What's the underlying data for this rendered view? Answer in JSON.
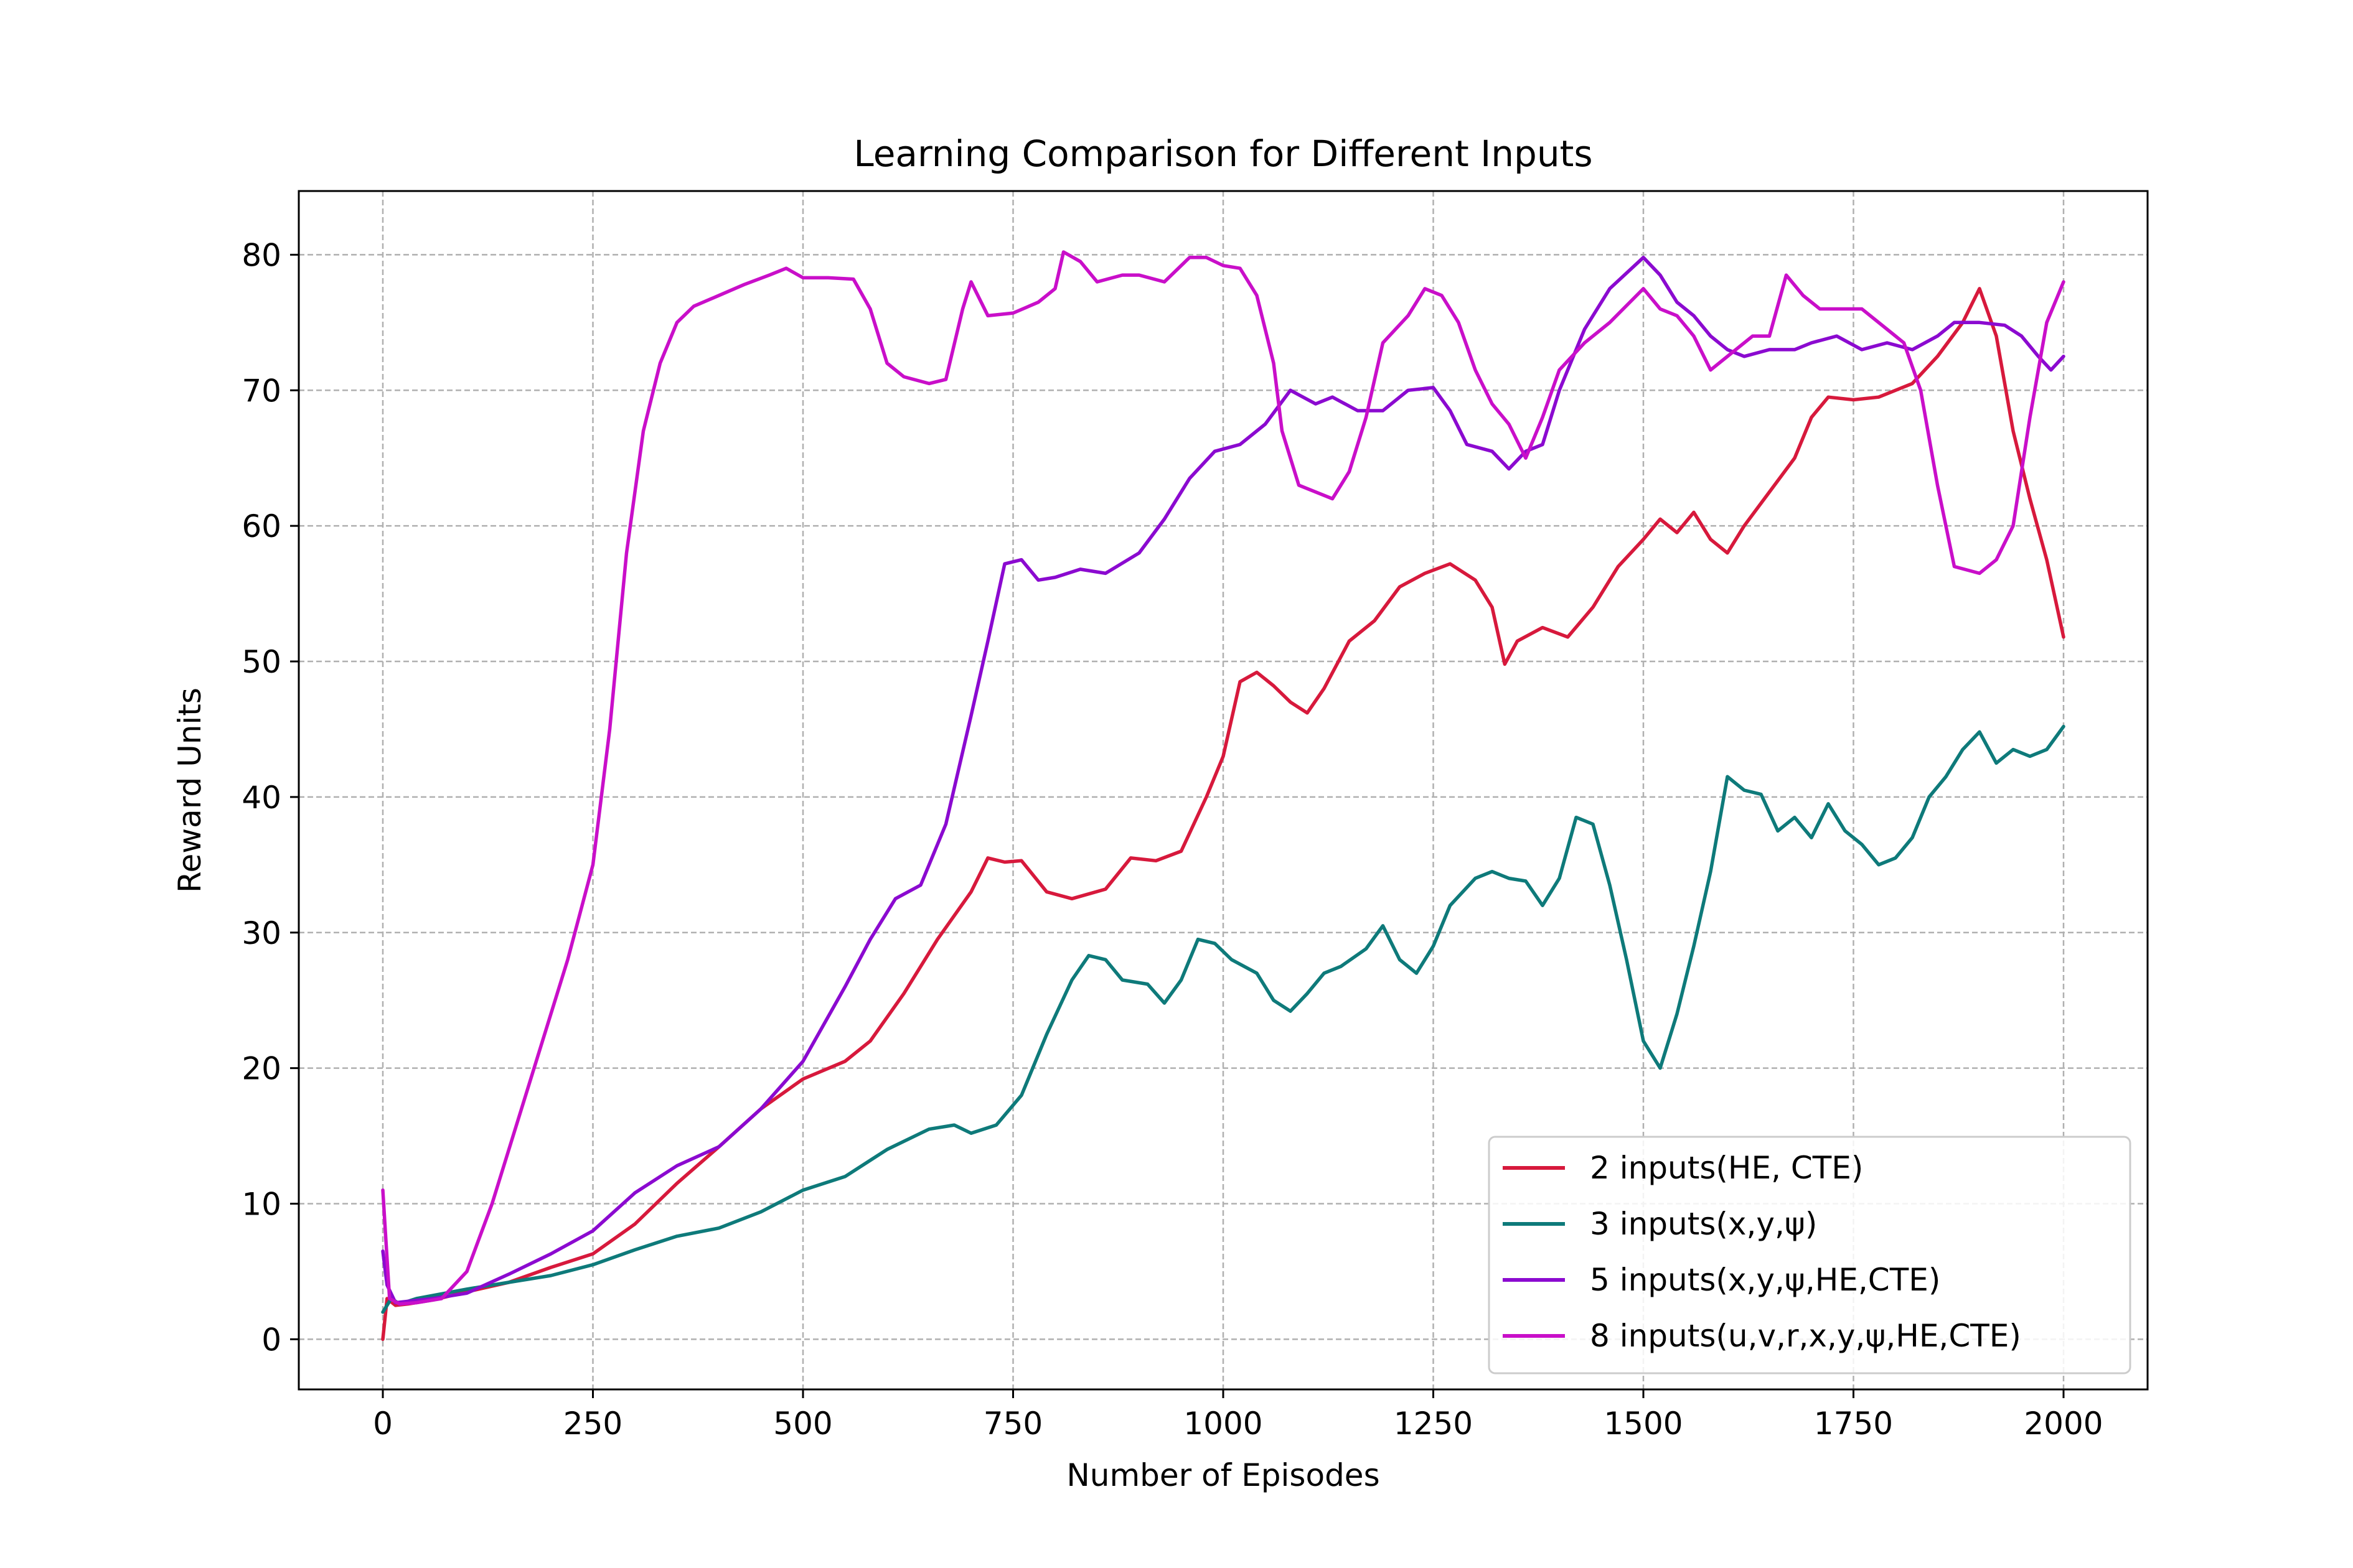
{
  "chart_data": {
    "type": "line",
    "title": "Learning Comparison for Different Inputs",
    "xlabel": "Number of Episodes",
    "ylabel": "Reward Units",
    "xlim": [
      -100,
      2100
    ],
    "ylim": [
      -3.7,
      84.7
    ],
    "xticks": [
      0,
      250,
      500,
      750,
      1000,
      1250,
      1500,
      1750,
      2000
    ],
    "yticks": [
      0,
      10,
      20,
      30,
      40,
      50,
      60,
      70,
      80
    ],
    "grid": true,
    "legend_position": "lower-right",
    "series": [
      {
        "name": "2 inputs(HE, CTE)",
        "color": "#d7193c",
        "points": [
          [
            0,
            0
          ],
          [
            5,
            3
          ],
          [
            15,
            2.5
          ],
          [
            30,
            2.6
          ],
          [
            60,
            2.9
          ],
          [
            100,
            3.5
          ],
          [
            150,
            4.2
          ],
          [
            200,
            5.3
          ],
          [
            250,
            6.3
          ],
          [
            300,
            8.5
          ],
          [
            350,
            11.5
          ],
          [
            400,
            14.2
          ],
          [
            450,
            17
          ],
          [
            500,
            19.2
          ],
          [
            550,
            20.5
          ],
          [
            580,
            22
          ],
          [
            620,
            25.5
          ],
          [
            660,
            29.5
          ],
          [
            700,
            33
          ],
          [
            720,
            35.5
          ],
          [
            740,
            35.2
          ],
          [
            760,
            35.3
          ],
          [
            790,
            33
          ],
          [
            820,
            32.5
          ],
          [
            860,
            33.2
          ],
          [
            890,
            35.5
          ],
          [
            920,
            35.3
          ],
          [
            950,
            36
          ],
          [
            980,
            40
          ],
          [
            1000,
            43
          ],
          [
            1020,
            48.5
          ],
          [
            1040,
            49.2
          ],
          [
            1060,
            48.2
          ],
          [
            1080,
            47
          ],
          [
            1100,
            46.2
          ],
          [
            1120,
            48
          ],
          [
            1150,
            51.5
          ],
          [
            1180,
            53
          ],
          [
            1210,
            55.5
          ],
          [
            1240,
            56.5
          ],
          [
            1270,
            57.2
          ],
          [
            1300,
            56
          ],
          [
            1320,
            54
          ],
          [
            1335,
            49.8
          ],
          [
            1350,
            51.5
          ],
          [
            1380,
            52.5
          ],
          [
            1410,
            51.8
          ],
          [
            1440,
            54
          ],
          [
            1470,
            57
          ],
          [
            1500,
            59
          ],
          [
            1520,
            60.5
          ],
          [
            1540,
            59.5
          ],
          [
            1560,
            61
          ],
          [
            1580,
            59
          ],
          [
            1600,
            58
          ],
          [
            1620,
            60
          ],
          [
            1650,
            62.5
          ],
          [
            1680,
            65
          ],
          [
            1700,
            68
          ],
          [
            1720,
            69.5
          ],
          [
            1750,
            69.3
          ],
          [
            1780,
            69.5
          ],
          [
            1820,
            70.5
          ],
          [
            1850,
            72.5
          ],
          [
            1880,
            75
          ],
          [
            1900,
            77.5
          ],
          [
            1920,
            74
          ],
          [
            1940,
            67
          ],
          [
            1960,
            62
          ],
          [
            1980,
            57.5
          ],
          [
            2000,
            51.8
          ]
        ]
      },
      {
        "name": "3 inputs(x,y,ψ)",
        "color": "#0e7a7a",
        "points": [
          [
            0,
            2
          ],
          [
            10,
            3
          ],
          [
            20,
            2.6
          ],
          [
            40,
            3
          ],
          [
            100,
            3.7
          ],
          [
            150,
            4.2
          ],
          [
            200,
            4.7
          ],
          [
            250,
            5.5
          ],
          [
            300,
            6.6
          ],
          [
            350,
            7.6
          ],
          [
            400,
            8.2
          ],
          [
            450,
            9.4
          ],
          [
            500,
            11
          ],
          [
            550,
            12
          ],
          [
            600,
            14
          ],
          [
            650,
            15.5
          ],
          [
            680,
            15.8
          ],
          [
            700,
            15.2
          ],
          [
            730,
            15.8
          ],
          [
            760,
            18
          ],
          [
            790,
            22.5
          ],
          [
            820,
            26.5
          ],
          [
            840,
            28.3
          ],
          [
            860,
            28
          ],
          [
            880,
            26.5
          ],
          [
            910,
            26.2
          ],
          [
            930,
            24.8
          ],
          [
            950,
            26.5
          ],
          [
            970,
            29.5
          ],
          [
            990,
            29.2
          ],
          [
            1010,
            28
          ],
          [
            1040,
            27
          ],
          [
            1060,
            25
          ],
          [
            1080,
            24.2
          ],
          [
            1100,
            25.5
          ],
          [
            1120,
            27
          ],
          [
            1140,
            27.5
          ],
          [
            1170,
            28.8
          ],
          [
            1190,
            30.5
          ],
          [
            1210,
            28
          ],
          [
            1230,
            27
          ],
          [
            1250,
            29
          ],
          [
            1270,
            32
          ],
          [
            1300,
            34
          ],
          [
            1320,
            34.5
          ],
          [
            1340,
            34
          ],
          [
            1360,
            33.8
          ],
          [
            1380,
            32
          ],
          [
            1400,
            34
          ],
          [
            1420,
            38.5
          ],
          [
            1440,
            38
          ],
          [
            1460,
            33.5
          ],
          [
            1480,
            28
          ],
          [
            1500,
            22
          ],
          [
            1520,
            20
          ],
          [
            1540,
            24
          ],
          [
            1560,
            29
          ],
          [
            1580,
            34.5
          ],
          [
            1600,
            41.5
          ],
          [
            1620,
            40.5
          ],
          [
            1640,
            40.2
          ],
          [
            1660,
            37.5
          ],
          [
            1680,
            38.5
          ],
          [
            1700,
            37
          ],
          [
            1720,
            39.5
          ],
          [
            1740,
            37.5
          ],
          [
            1760,
            36.5
          ],
          [
            1780,
            35
          ],
          [
            1800,
            35.5
          ],
          [
            1820,
            37
          ],
          [
            1840,
            40
          ],
          [
            1860,
            41.5
          ],
          [
            1880,
            43.5
          ],
          [
            1900,
            44.8
          ],
          [
            1920,
            42.5
          ],
          [
            1940,
            43.5
          ],
          [
            1960,
            43
          ],
          [
            1980,
            43.5
          ],
          [
            2000,
            45.2
          ]
        ]
      },
      {
        "name": "5 inputs(x,y,ψ,HE,CTE)",
        "color": "#8b0ad0",
        "points": [
          [
            0,
            6.5
          ],
          [
            5,
            4
          ],
          [
            15,
            2.7
          ],
          [
            30,
            2.8
          ],
          [
            60,
            3
          ],
          [
            100,
            3.4
          ],
          [
            150,
            4.8
          ],
          [
            200,
            6.3
          ],
          [
            250,
            8
          ],
          [
            300,
            10.8
          ],
          [
            350,
            12.8
          ],
          [
            400,
            14.2
          ],
          [
            450,
            17
          ],
          [
            500,
            20.5
          ],
          [
            550,
            26
          ],
          [
            580,
            29.5
          ],
          [
            610,
            32.5
          ],
          [
            640,
            33.5
          ],
          [
            670,
            38
          ],
          [
            700,
            46
          ],
          [
            720,
            51.5
          ],
          [
            740,
            57.2
          ],
          [
            760,
            57.5
          ],
          [
            780,
            56
          ],
          [
            800,
            56.2
          ],
          [
            830,
            56.8
          ],
          [
            860,
            56.5
          ],
          [
            900,
            58
          ],
          [
            930,
            60.5
          ],
          [
            960,
            63.5
          ],
          [
            990,
            65.5
          ],
          [
            1020,
            66
          ],
          [
            1050,
            67.5
          ],
          [
            1080,
            70
          ],
          [
            1110,
            69
          ],
          [
            1130,
            69.5
          ],
          [
            1160,
            68.5
          ],
          [
            1190,
            68.5
          ],
          [
            1220,
            70
          ],
          [
            1250,
            70.2
          ],
          [
            1270,
            68.5
          ],
          [
            1290,
            66
          ],
          [
            1320,
            65.5
          ],
          [
            1340,
            64.2
          ],
          [
            1360,
            65.5
          ],
          [
            1380,
            66
          ],
          [
            1400,
            70
          ],
          [
            1430,
            74.5
          ],
          [
            1460,
            77.5
          ],
          [
            1500,
            79.8
          ],
          [
            1520,
            78.5
          ],
          [
            1540,
            76.5
          ],
          [
            1560,
            75.5
          ],
          [
            1580,
            74
          ],
          [
            1600,
            73
          ],
          [
            1620,
            72.5
          ],
          [
            1650,
            73
          ],
          [
            1680,
            73
          ],
          [
            1700,
            73.5
          ],
          [
            1730,
            74
          ],
          [
            1760,
            73
          ],
          [
            1790,
            73.5
          ],
          [
            1820,
            73
          ],
          [
            1850,
            74
          ],
          [
            1870,
            75
          ],
          [
            1900,
            75
          ],
          [
            1930,
            74.8
          ],
          [
            1950,
            74
          ],
          [
            1970,
            72.5
          ],
          [
            1985,
            71.5
          ],
          [
            2000,
            72.5
          ]
        ]
      },
      {
        "name": "8 inputs(u,v,r,x,y,ψ,HE,CTE)",
        "color": "#c90fc9",
        "points": [
          [
            0,
            11
          ],
          [
            3,
            8
          ],
          [
            8,
            3
          ],
          [
            20,
            2.6
          ],
          [
            40,
            2.7
          ],
          [
            70,
            3
          ],
          [
            100,
            5
          ],
          [
            130,
            10
          ],
          [
            160,
            16
          ],
          [
            190,
            22
          ],
          [
            220,
            28
          ],
          [
            250,
            35
          ],
          [
            270,
            45
          ],
          [
            290,
            58
          ],
          [
            310,
            67
          ],
          [
            330,
            72
          ],
          [
            350,
            75
          ],
          [
            370,
            76.2
          ],
          [
            400,
            77
          ],
          [
            430,
            77.8
          ],
          [
            460,
            78.5
          ],
          [
            480,
            79
          ],
          [
            500,
            78.3
          ],
          [
            530,
            78.3
          ],
          [
            560,
            78.2
          ],
          [
            580,
            76
          ],
          [
            600,
            72
          ],
          [
            620,
            71
          ],
          [
            650,
            70.5
          ],
          [
            670,
            70.8
          ],
          [
            690,
            76
          ],
          [
            700,
            78
          ],
          [
            720,
            75.5
          ],
          [
            750,
            75.7
          ],
          [
            780,
            76.5
          ],
          [
            800,
            77.5
          ],
          [
            810,
            80.2
          ],
          [
            830,
            79.5
          ],
          [
            850,
            78
          ],
          [
            880,
            78.5
          ],
          [
            900,
            78.5
          ],
          [
            930,
            78
          ],
          [
            960,
            79.8
          ],
          [
            980,
            79.8
          ],
          [
            1000,
            79.2
          ],
          [
            1020,
            79
          ],
          [
            1040,
            77
          ],
          [
            1060,
            72
          ],
          [
            1070,
            67
          ],
          [
            1090,
            63
          ],
          [
            1110,
            62.5
          ],
          [
            1130,
            62
          ],
          [
            1150,
            64
          ],
          [
            1170,
            68
          ],
          [
            1190,
            73.5
          ],
          [
            1220,
            75.5
          ],
          [
            1240,
            77.5
          ],
          [
            1260,
            77
          ],
          [
            1280,
            75
          ],
          [
            1300,
            71.5
          ],
          [
            1320,
            69
          ],
          [
            1340,
            67.5
          ],
          [
            1360,
            65
          ],
          [
            1380,
            68
          ],
          [
            1400,
            71.5
          ],
          [
            1430,
            73.5
          ],
          [
            1460,
            75
          ],
          [
            1500,
            77.5
          ],
          [
            1520,
            76
          ],
          [
            1540,
            75.5
          ],
          [
            1560,
            74
          ],
          [
            1580,
            71.5
          ],
          [
            1600,
            72.5
          ],
          [
            1630,
            74
          ],
          [
            1650,
            74
          ],
          [
            1670,
            78.5
          ],
          [
            1690,
            77
          ],
          [
            1710,
            76
          ],
          [
            1730,
            76
          ],
          [
            1760,
            76
          ],
          [
            1790,
            74.5
          ],
          [
            1810,
            73.5
          ],
          [
            1830,
            70
          ],
          [
            1850,
            63
          ],
          [
            1870,
            57
          ],
          [
            1900,
            56.5
          ],
          [
            1920,
            57.5
          ],
          [
            1940,
            60
          ],
          [
            1960,
            68
          ],
          [
            1980,
            75
          ],
          [
            2000,
            78
          ]
        ]
      }
    ]
  }
}
